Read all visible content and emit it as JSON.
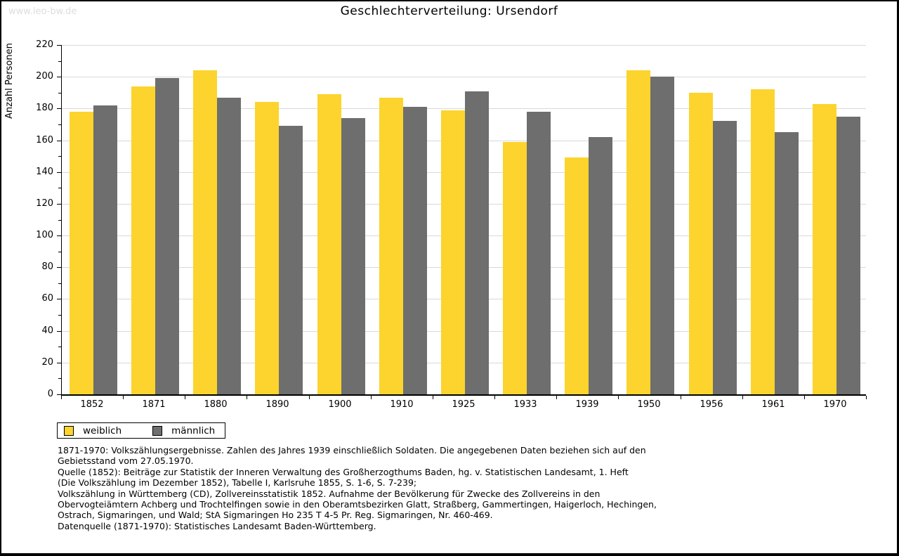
{
  "watermark": "www.leo-bw.de",
  "chart_data": {
    "type": "bar",
    "title": "Geschlechterverteilung: Ursendorf",
    "xlabel": "",
    "ylabel": "Anzahl Personen",
    "categories": [
      "1852",
      "1871",
      "1880",
      "1890",
      "1900",
      "1910",
      "1925",
      "1933",
      "1939",
      "1950",
      "1956",
      "1961",
      "1970"
    ],
    "series": [
      {
        "name": "weiblich",
        "color": "#FCD42D",
        "values": [
          178,
          194,
          204,
          184,
          189,
          187,
          179,
          159,
          149,
          204,
          190,
          192,
          183
        ]
      },
      {
        "name": "männlich",
        "color": "#6E6E6E",
        "values": [
          182,
          199,
          187,
          169,
          174,
          181,
          191,
          178,
          162,
          200,
          172,
          165,
          175
        ]
      }
    ],
    "ylim": [
      0,
      220
    ],
    "ytick_step": 20,
    "minor_tick_step": 10,
    "grid": true,
    "gridline_color": "#d9d9d9",
    "legend_position": "bottom-left"
  },
  "notes": {
    "lines": [
      "1871-1970: Volkszählungsergebnisse. Zahlen des Jahres 1939 einschließlich Soldaten. Die angegebenen Daten beziehen sich auf den",
      "Gebietsstand vom 27.05.1970.",
      "Quelle (1852): Beiträge zur Statistik der Inneren Verwaltung des Großherzogthums Baden, hg. v. Statistischen Landesamt, 1. Heft",
      "(Die Volkszählung im Dezember 1852), Tabelle I, Karlsruhe 1855, S. 1-6, S. 7-239;",
      "Volkszählung in Württemberg (CD), Zollvereinsstatistik 1852. Aufnahme der Bevölkerung für Zwecke des Zollvereins in den",
      "Obervogteiämtern Achberg und Trochtelfingen sowie in den Oberamtsbezirken Glatt, Straßberg, Gammertingen, Haigerloch, Hechingen,",
      "Ostrach, Sigmaringen, und Wald; StA Sigmaringen Ho 235 T 4-5 Pr. Reg. Sigmaringen, Nr. 460-469."
    ],
    "datasource": "Datenquelle (1871-1970): Statistisches Landesamt Baden-Württemberg."
  }
}
